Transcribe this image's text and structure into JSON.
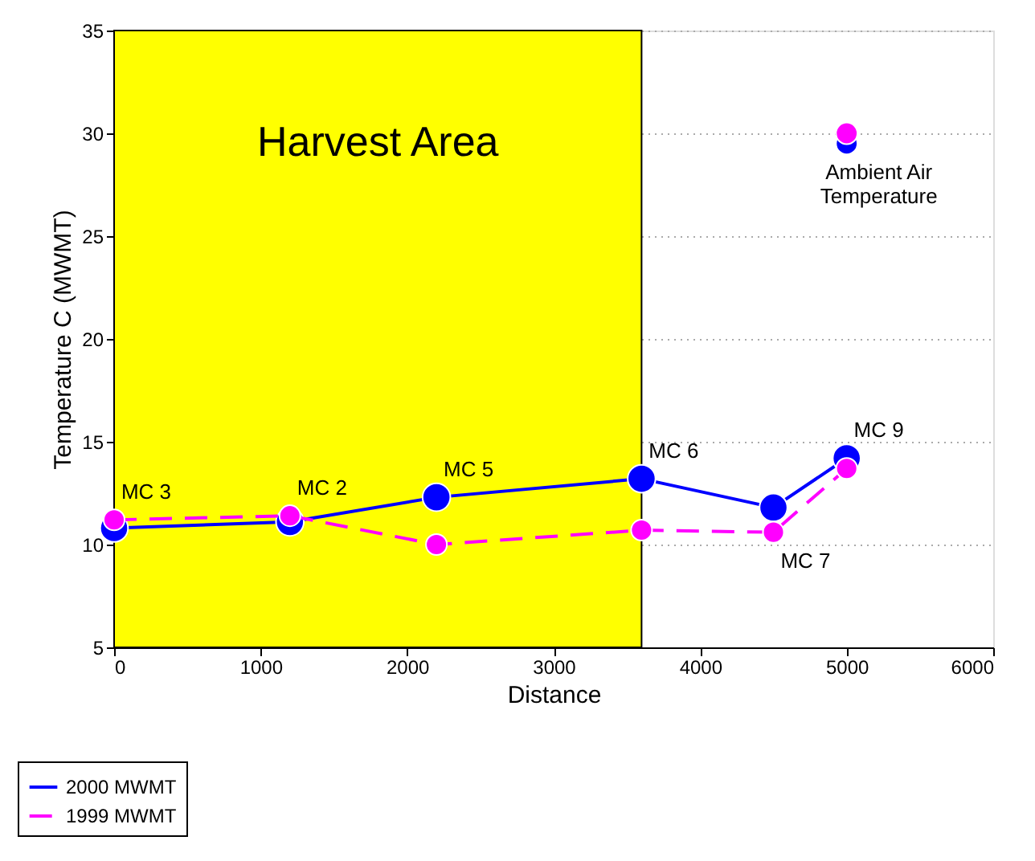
{
  "chart_data": {
    "type": "line",
    "xlabel": "Distance",
    "ylabel": "Temperature C (MWMT)",
    "xlim": [
      0,
      6000
    ],
    "xticks": [
      0,
      1000,
      2000,
      3000,
      4000,
      5000,
      6000
    ],
    "ylim": [
      5,
      35
    ],
    "yticks": [
      5,
      10,
      15,
      20,
      25,
      30,
      35
    ],
    "grid": "y",
    "legend": "bottom left",
    "marker": "circle",
    "series": [
      {
        "name": "2000 MWMT",
        "color": "#0000ff",
        "line_style": "solid",
        "x": [
          0,
          1200,
          2200,
          3600,
          4500,
          5000
        ],
        "values": [
          10.8,
          11.1,
          12.3,
          13.2,
          11.8,
          14.2
        ]
      },
      {
        "name": "1999 MWMT",
        "color": "#ff00ff",
        "line_style": "dashed",
        "x": [
          0,
          1200,
          2200,
          3600,
          4500,
          5000
        ],
        "values": [
          11.2,
          11.4,
          10.0,
          10.7,
          10.6,
          13.7
        ]
      },
      {
        "type": "scatter",
        "color": "#0000ff",
        "x": [
          5000
        ],
        "values": [
          29.5
        ]
      },
      {
        "type": "scatter",
        "color": "#ff00ff",
        "x": [
          5000
        ],
        "values": [
          30.0
        ]
      }
    ],
    "bands": [
      {
        "axis": "x",
        "from": 0,
        "to": 3600,
        "label": "Harvest Area",
        "color": "#ffff00"
      }
    ],
    "annotations": [
      {
        "text": "MC 3",
        "x": 0,
        "y": 11.2
      },
      {
        "text": "MC 2",
        "x": 1200,
        "y": 11.4
      },
      {
        "text": "MC 5",
        "x": 2200,
        "y": 12.3
      },
      {
        "text": "MC 6",
        "x": 3600,
        "y": 13.2
      },
      {
        "text": "MC 7",
        "x": 4500,
        "y": 10.6
      },
      {
        "text": "MC 9",
        "x": 5000,
        "y": 14.2
      },
      {
        "text": "Ambient Air\nTemperature",
        "x": 5000,
        "y": 29.5
      }
    ]
  }
}
